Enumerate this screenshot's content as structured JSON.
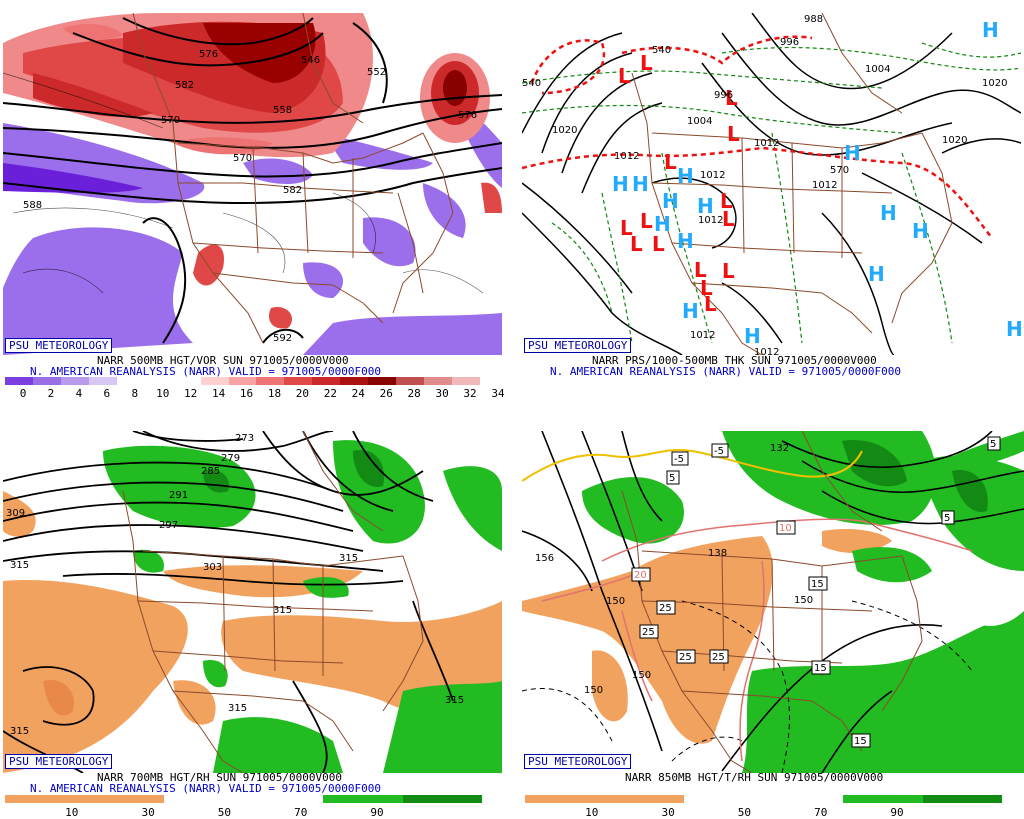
{
  "panels": {
    "tl": {
      "badge": "PSU METEOROLOGY",
      "caption1": "NARR 500MB HGT/VOR SUN 971005/0000V000",
      "caption2": "N. AMERICAN REANALYSIS (NARR) VALID = 971005/0000F000",
      "colorbar_ticks": [
        "0",
        "2",
        "4",
        "6",
        "8",
        "10",
        "12",
        "14",
        "16",
        "18",
        "20",
        "22",
        "24",
        "26",
        "28",
        "30",
        "32",
        "34"
      ],
      "colorbar_colors": [
        "#7b3fe0",
        "#9a6fe6",
        "#b89aec",
        "#d7c7f4",
        "#ffffff",
        "#ffffff",
        "#ffffff",
        "#ffd0d0",
        "#f7a3a3",
        "#ee7373",
        "#e04848",
        "#cc2a2a",
        "#aa1010",
        "#880000",
        "#c05050",
        "#e08c8c",
        "#f0b8b8"
      ],
      "map_labels": [
        "576",
        "582",
        "570",
        "570",
        "558",
        "546",
        "552",
        "582",
        "588",
        "592",
        "576"
      ]
    },
    "tr": {
      "badge": "PSU METEOROLOGY",
      "caption1": "NARR PRS/1000-500MB THK SUN 971005/0000V000",
      "caption2": "N. AMERICAN REANALYSIS (NARR) VALID = 971005/0000F000",
      "map_labels": [
        "1020",
        "1020",
        "1012",
        "1012",
        "1004",
        "1004",
        "996",
        "988",
        "996",
        "1012",
        "1012",
        "1012",
        "1012",
        "540",
        "570",
        "540",
        "1020",
        "1012"
      ],
      "highs_label": "H",
      "lows_label": "L"
    },
    "bl": {
      "badge": "PSU METEOROLOGY",
      "caption1": "NARR 700MB HGT/RH SUN 971005/0000V000",
      "caption2": "N. AMERICAN REANALYSIS (NARR) VALID = 971005/0000F000",
      "colorbar_ticks": [
        "10",
        "30",
        "50",
        "70",
        "90"
      ],
      "map_labels": [
        "273",
        "279",
        "285",
        "291",
        "297",
        "303",
        "309",
        "315",
        "315",
        "315",
        "315",
        "315",
        "315"
      ]
    },
    "br": {
      "badge": "PSU METEOROLOGY",
      "caption1": "NARR 850MB HGT/T/RH SUN 971005/0000V000",
      "colorbar_ticks": [
        "10",
        "30",
        "50",
        "70",
        "90"
      ],
      "map_labels": [
        "156",
        "150",
        "150",
        "138",
        "150",
        "132",
        "150"
      ],
      "boxed_labels": [
        "-5",
        "-5",
        "5",
        "5",
        "5",
        "10",
        "15",
        "15",
        "15",
        "20",
        "25",
        "25",
        "25",
        "25"
      ]
    }
  },
  "colors": {
    "badge_blue": "#0000aa",
    "caption_blue": "#0000cc",
    "dry_orange": "#f2a25f",
    "moist_green": "#22bb22",
    "high_blue": "#22aaff",
    "low_red": "#ee1111",
    "border_brown": "#8b4a2b"
  }
}
